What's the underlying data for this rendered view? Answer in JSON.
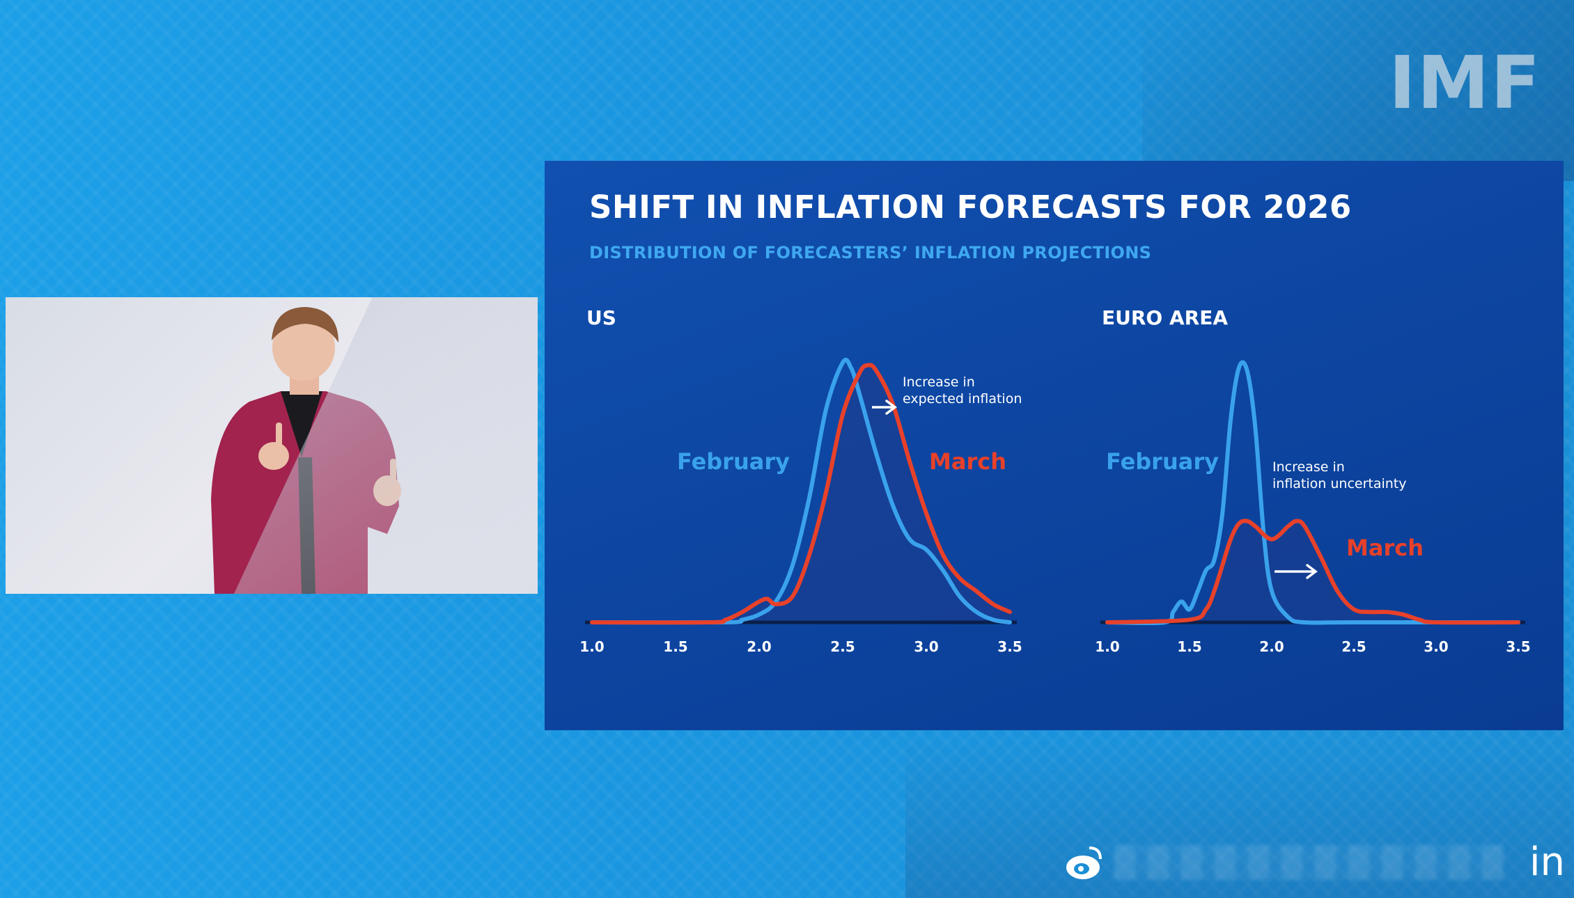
{
  "brand": {
    "logo_text": "IMF",
    "corner_text": "in"
  },
  "slide": {
    "title": "SHIFT IN INFLATION FORECASTS FOR 2026",
    "subtitle": "DISTRIBUTION OF FORECASTERS’ INFLATION PROJECTIONS"
  },
  "colors": {
    "february": "#3aa2ec",
    "march": "#e8412a",
    "slide_bg": "#0d46a2",
    "annotation": "#ffffff"
  },
  "chart_data": [
    {
      "type": "line",
      "title": "US",
      "x_ticks": [
        "1.0",
        "1.5",
        "2.0",
        "2.5",
        "3.0",
        "3.5"
      ],
      "xlim": [
        1.0,
        3.5
      ],
      "ylim": [
        0,
        1
      ],
      "annotation": {
        "lines": [
          "Increase in",
          "expected inflation"
        ],
        "arrow": "right"
      },
      "series": [
        {
          "name": "February",
          "x": [
            1.0,
            1.8,
            1.9,
            2.0,
            2.1,
            2.2,
            2.3,
            2.4,
            2.5,
            2.55,
            2.6,
            2.7,
            2.8,
            2.9,
            3.0,
            3.1,
            3.2,
            3.3,
            3.4,
            3.5
          ],
          "y": [
            0,
            0,
            0.01,
            0.03,
            0.08,
            0.22,
            0.48,
            0.82,
            1.0,
            0.98,
            0.88,
            0.65,
            0.45,
            0.32,
            0.28,
            0.2,
            0.1,
            0.04,
            0.01,
            0
          ]
        },
        {
          "name": "March",
          "x": [
            1.0,
            1.7,
            1.8,
            1.9,
            2.0,
            2.05,
            2.1,
            2.2,
            2.3,
            2.4,
            2.5,
            2.6,
            2.65,
            2.7,
            2.8,
            2.9,
            3.0,
            3.1,
            3.2,
            3.3,
            3.4,
            3.5
          ],
          "y": [
            0,
            0,
            0.01,
            0.04,
            0.08,
            0.09,
            0.07,
            0.1,
            0.26,
            0.5,
            0.8,
            0.96,
            0.99,
            0.97,
            0.84,
            0.62,
            0.42,
            0.26,
            0.17,
            0.12,
            0.07,
            0.04
          ]
        }
      ]
    },
    {
      "type": "line",
      "title": "EURO AREA",
      "x_ticks": [
        "1.0",
        "1.5",
        "2.0",
        "2.5",
        "3.0",
        "3.5"
      ],
      "xlim": [
        1.0,
        3.5
      ],
      "ylim": [
        0,
        1
      ],
      "annotation": {
        "lines": [
          "Increase in",
          "inflation uncertainty"
        ],
        "arrow": "right"
      },
      "series": [
        {
          "name": "February",
          "x": [
            1.0,
            1.35,
            1.4,
            1.45,
            1.5,
            1.55,
            1.6,
            1.65,
            1.7,
            1.75,
            1.8,
            1.85,
            1.9,
            1.95,
            2.0,
            2.1,
            2.2,
            2.5,
            3.5
          ],
          "y": [
            0,
            0,
            0.04,
            0.08,
            0.05,
            0.12,
            0.2,
            0.24,
            0.42,
            0.78,
            0.98,
            0.97,
            0.75,
            0.35,
            0.12,
            0.02,
            0,
            0,
            0
          ]
        },
        {
          "name": "March",
          "x": [
            1.0,
            1.5,
            1.6,
            1.65,
            1.7,
            1.75,
            1.8,
            1.85,
            1.9,
            2.0,
            2.1,
            2.15,
            2.2,
            2.3,
            2.4,
            2.5,
            2.6,
            2.7,
            2.8,
            2.9,
            3.0,
            3.5
          ],
          "y": [
            0,
            0.01,
            0.05,
            0.12,
            0.22,
            0.32,
            0.38,
            0.39,
            0.37,
            0.32,
            0.37,
            0.39,
            0.37,
            0.25,
            0.12,
            0.05,
            0.04,
            0.04,
            0.03,
            0.01,
            0,
            0
          ]
        }
      ]
    }
  ]
}
